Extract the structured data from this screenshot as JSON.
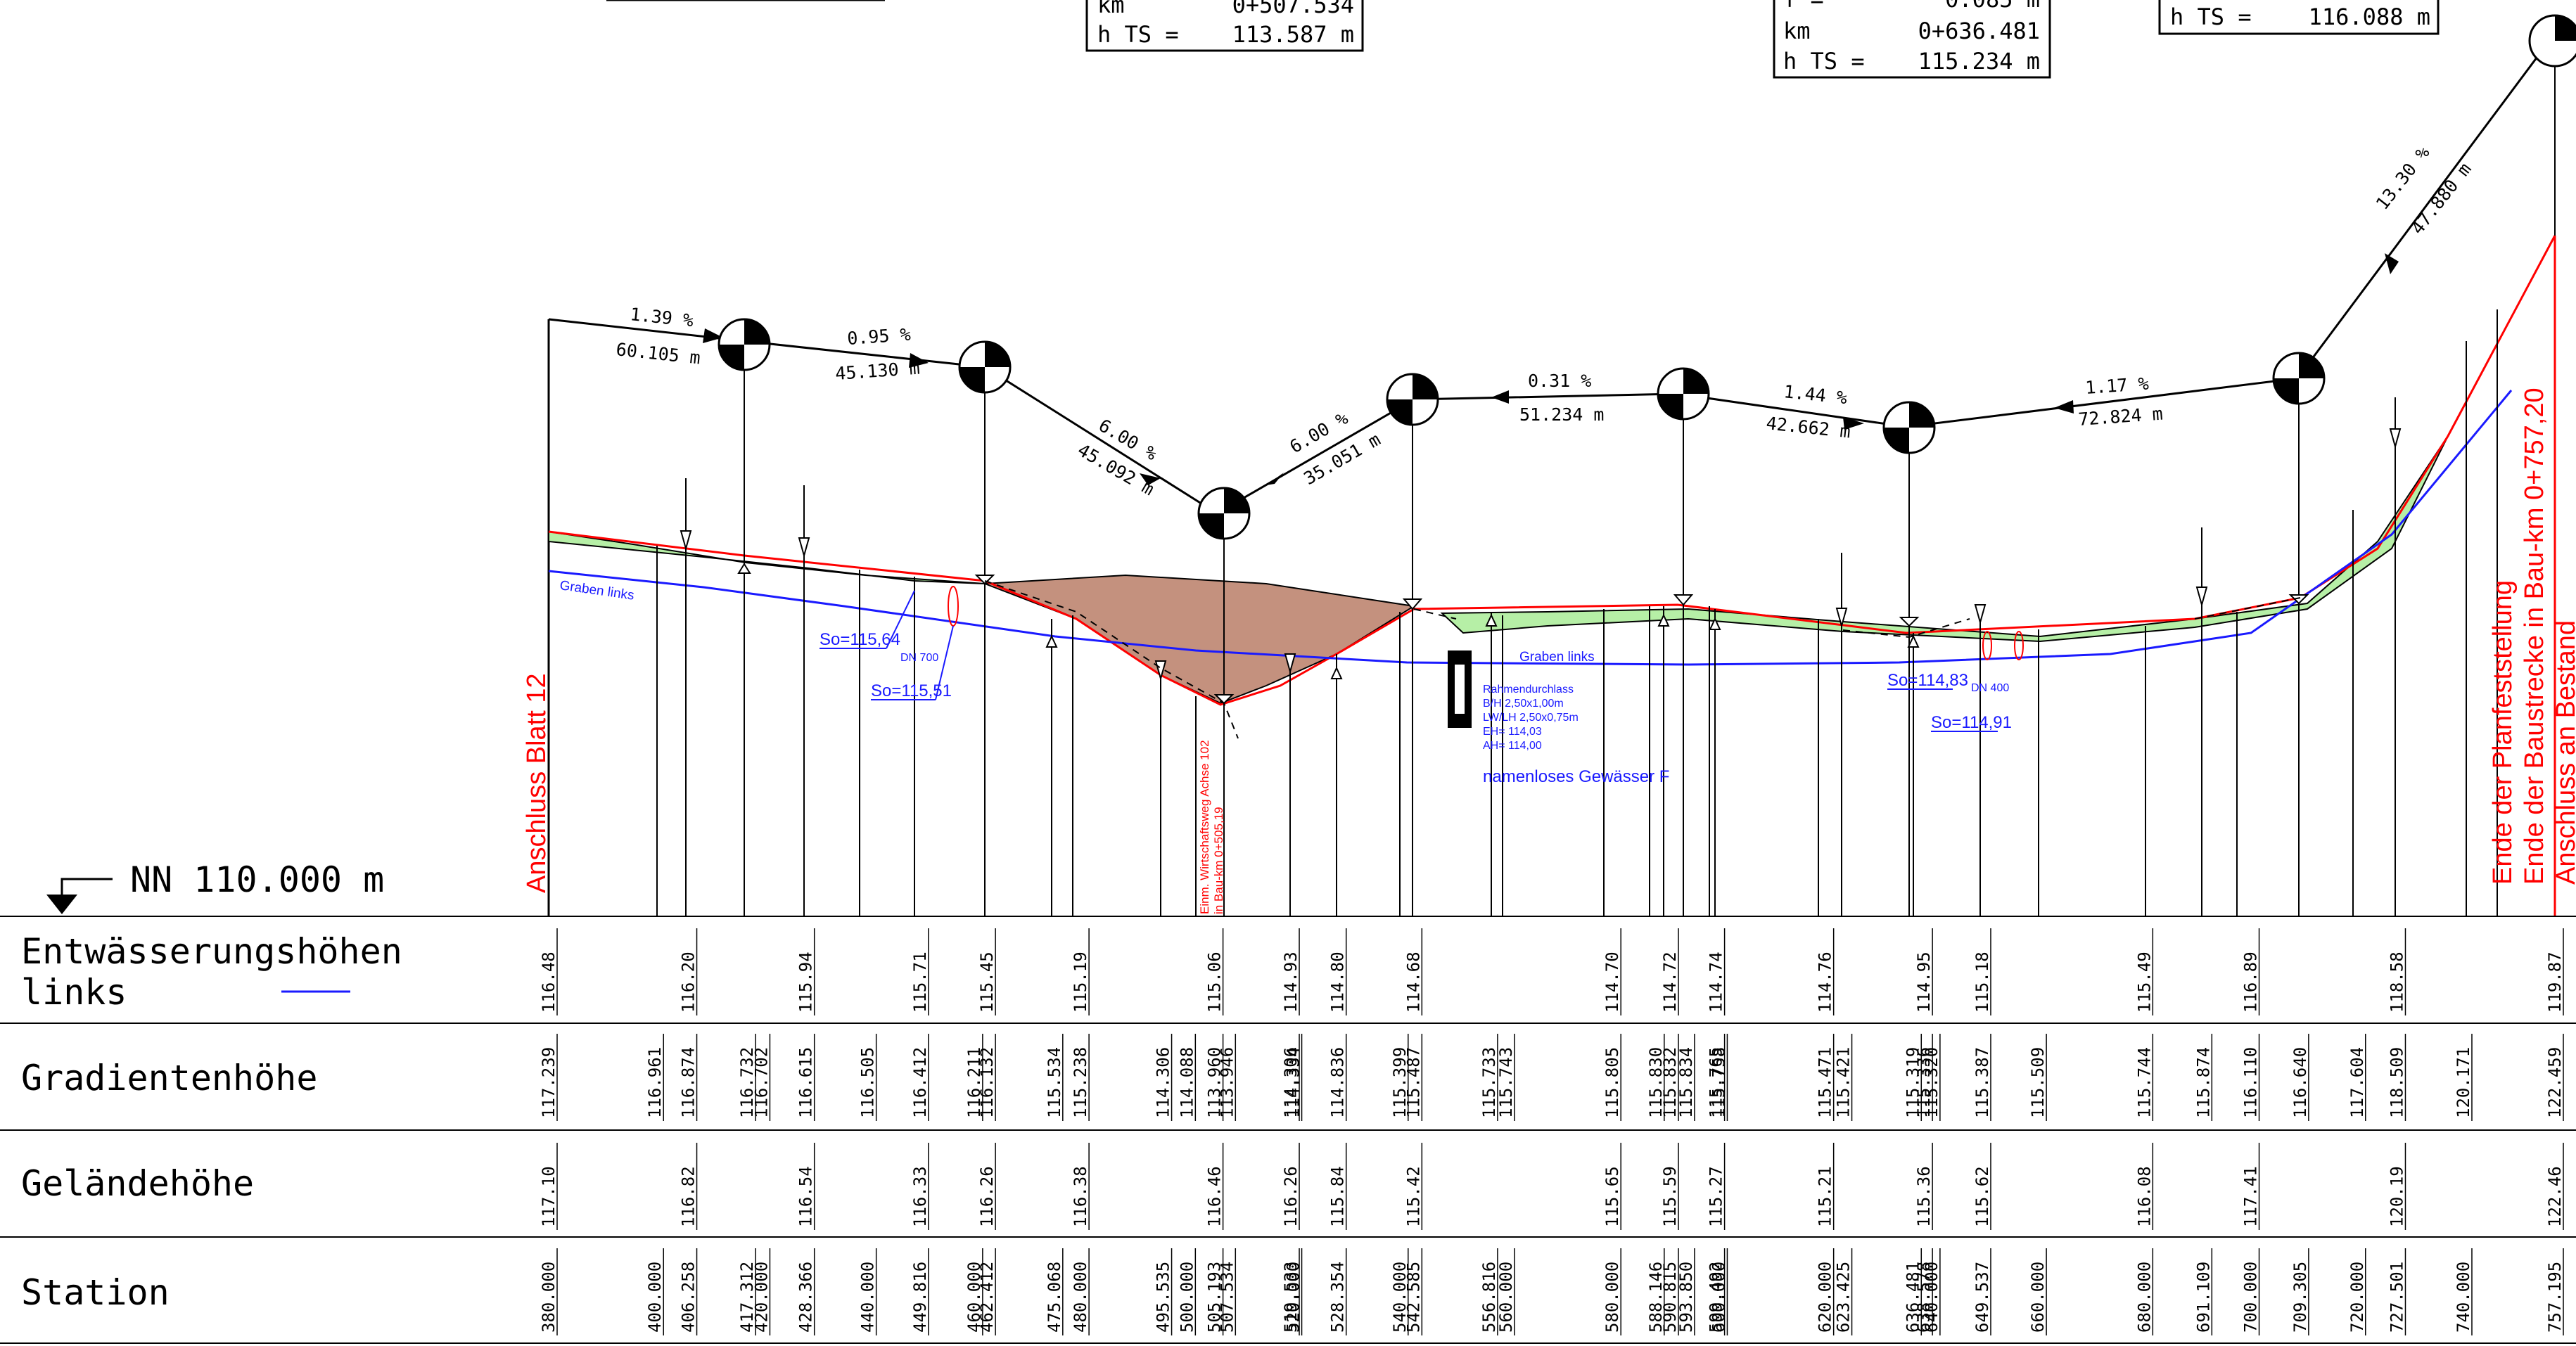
{
  "datum": {
    "label": "NN  110.000 m"
  },
  "top_boxes": [
    {
      "lines": [
        {
          "k": "km",
          "v": "0+507.534"
        },
        {
          "k": "h TS =",
          "v": "113.587 m"
        }
      ]
    },
    {
      "lines": [
        {
          "k": "f   =",
          "v": "0.085 m"
        },
        {
          "k": "km",
          "v": "0+636.481"
        },
        {
          "k": "h TS =",
          "v": "115.234 m"
        }
      ]
    },
    {
      "lines": [
        {
          "k": "h TS =",
          "v": "116.088 m"
        }
      ]
    }
  ],
  "grade_labels": [
    {
      "pct": "1.39 %",
      "len": "60.105 m"
    },
    {
      "pct": "0.95 %",
      "len": "45.130 m"
    },
    {
      "pct": "6.00 %",
      "len": "45.092 m"
    },
    {
      "pct": "6.00 %",
      "len": "35.051 m"
    },
    {
      "pct": "0.31 %",
      "len": "51.234 m"
    },
    {
      "pct": "1.44 %",
      "len": "42.662 m"
    },
    {
      "pct": "1.17 %",
      "len": "72.824 m"
    },
    {
      "pct": "13.30 %",
      "len": "47.880 m"
    }
  ],
  "annotations": {
    "graben_links_1": "Graben links",
    "graben_links_2": "Graben links",
    "so1": "So=115,64",
    "so2": "So=115,51",
    "dn1": "DN 700",
    "so3": "So=114,83",
    "so4": "So=114,91",
    "dn2": "DN 400",
    "culvert": [
      "Rahmendurchlass",
      "B/H 2,50x1,00m",
      "LW/LH 2,50x0,75m",
      "EH= 114,03",
      "AH= 114,00"
    ],
    "water": "namenloses Gewässer F",
    "crossing": [
      "Einm. Wirtschaftsweg Achse 102",
      "in Bau-km 0+505,19"
    ],
    "anschluss_left": "Anschluss Blatt 12",
    "end_lines": [
      "Ende der Planfeststellung",
      "Ende der Baustrecke in Bau-km 0+757,20",
      "Anschluss an Bestand"
    ]
  },
  "band_labels": {
    "drainage": [
      "Entwässerungshöhen",
      "links"
    ],
    "gradient": "Gradientenhöhe",
    "terrain": "Geländehöhe",
    "station": "Station"
  },
  "drainage_values": [
    "116.48",
    "116.20",
    "115.94",
    "115.71",
    "115.45",
    "115.19",
    "115.06",
    "114.93",
    "114.80",
    "114.68",
    "114.70",
    "114.72",
    "114.74",
    "114.76",
    "114.95",
    "115.18",
    "115.49",
    "116.89",
    "118.58",
    "119.87"
  ],
  "gradient_values": [
    "117.239",
    "116.961",
    "116.874",
    "116.732",
    "116.702",
    "116.615",
    "116.505",
    "116.412",
    "116.211",
    "116.132",
    "115.534",
    "115.238",
    "114.306",
    "114.088",
    "113.960",
    "113.946",
    "114.306",
    "114.334",
    "114.836",
    "115.399",
    "115.487",
    "115.733",
    "115.743",
    "115.805",
    "115.830",
    "115.832",
    "115.834",
    "115.765",
    "115.758",
    "115.471",
    "115.421",
    "115.319",
    "115.336",
    "115.320",
    "115.387",
    "115.509",
    "115.744",
    "115.874",
    "116.110",
    "116.640",
    "117.604",
    "118.509",
    "120.171",
    "122.459"
  ],
  "terrain_values": [
    "117.10",
    "116.82",
    "116.54",
    "116.33",
    "116.26",
    "116.38",
    "116.46",
    "116.26",
    "115.84",
    "115.42",
    "115.65",
    "115.59",
    "115.27",
    "115.21",
    "115.36",
    "115.62",
    "116.08",
    "117.41",
    "120.19",
    "122.46"
  ],
  "station_values": [
    "380.000",
    "400.000",
    "406.258",
    "417.312",
    "420.000",
    "428.366",
    "440.000",
    "449.816",
    "460.000",
    "462.412",
    "475.068",
    "480.000",
    "495.535",
    "500.000",
    "505.193",
    "507.534",
    "519.533",
    "520.000",
    "528.354",
    "540.000",
    "542.585",
    "556.816",
    "560.000",
    "580.000",
    "588.146",
    "590.815",
    "593.850",
    "599.492",
    "600.000",
    "620.000",
    "623.425",
    "636.481",
    "638.578",
    "640.000",
    "649.537",
    "660.000",
    "680.000",
    "691.109",
    "700.000",
    "709.305",
    "720.000",
    "727.501",
    "740.000",
    "757.195"
  ]
}
